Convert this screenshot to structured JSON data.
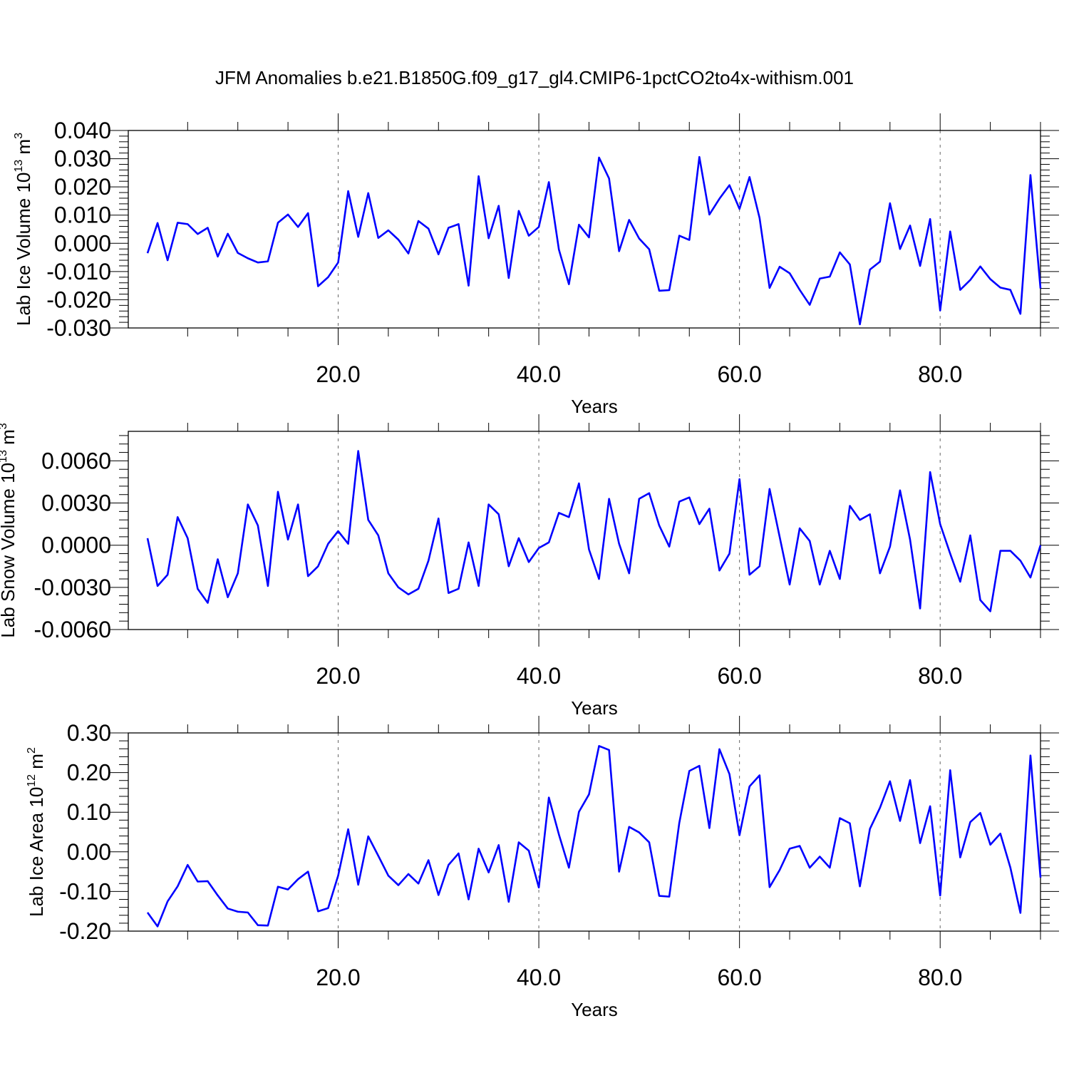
{
  "title": "JFM Anomalies b.e21.B1850G.f09_g17_gl4.CMIP6-1pctCO2to4x-withism.001",
  "line_color": "#0000ff",
  "chart_data": [
    {
      "type": "line",
      "xlabel": "Years",
      "ylabel": "Lab Ice Volume 10",
      "ylabel_exp": "13",
      "ylabel_unit": " m",
      "ylabel_unit_exp": "3",
      "xlim": [
        1,
        90
      ],
      "ylim": [
        -0.03,
        0.04
      ],
      "xticks": [
        20,
        40,
        60,
        80
      ],
      "xtick_labels": [
        "20.0",
        "40.0",
        "60.0",
        "80.0"
      ],
      "yticks": [
        -0.03,
        -0.02,
        -0.01,
        0.0,
        0.01,
        0.02,
        0.03,
        0.04
      ],
      "ytick_labels": [
        "-0.030",
        "-0.020",
        "-0.010",
        "0.000",
        "0.010",
        "0.020",
        "0.030",
        "0.040"
      ],
      "grid": "vertical dashed at major x ticks",
      "x_start": 1,
      "values": [
        -0.0035,
        0.0072,
        -0.006,
        0.0073,
        0.0068,
        0.0033,
        0.0055,
        -0.0047,
        0.0034,
        -0.0034,
        -0.0053,
        -0.0068,
        -0.0064,
        0.0073,
        0.0102,
        0.0058,
        0.0107,
        -0.0152,
        -0.012,
        -0.0068,
        0.0185,
        0.0023,
        0.0178,
        0.0019,
        0.0046,
        0.0013,
        -0.0036,
        0.0079,
        0.0052,
        -0.0039,
        0.0055,
        0.0068,
        -0.015,
        0.0238,
        0.0018,
        0.0133,
        -0.0123,
        0.0115,
        0.0027,
        0.0058,
        0.0217,
        -0.0022,
        -0.0145,
        0.0066,
        0.0021,
        0.0304,
        0.023,
        -0.0028,
        0.0083,
        0.0017,
        -0.0021,
        -0.0168,
        -0.0166,
        0.0027,
        0.0012,
        0.0306,
        0.0102,
        0.0158,
        0.0206,
        0.0122,
        0.0235,
        0.009,
        -0.0158,
        -0.0083,
        -0.0106,
        -0.0165,
        -0.0218,
        -0.0125,
        -0.0118,
        -0.0032,
        -0.0075,
        -0.0287,
        -0.0093,
        -0.0065,
        0.0142,
        -0.002,
        0.0063,
        -0.008,
        0.0086,
        -0.0238,
        0.0042,
        -0.0165,
        -0.013,
        -0.0082,
        -0.0127,
        -0.0157,
        -0.0165,
        -0.025,
        0.0242,
        -0.016
      ]
    },
    {
      "type": "line",
      "xlabel": "Years",
      "ylabel": "Lab Snow Volume 10",
      "ylabel_exp": "13",
      "ylabel_unit": " m",
      "ylabel_unit_exp": "3",
      "xlim": [
        1,
        90
      ],
      "ylim": [
        -0.006,
        0.0081
      ],
      "xticks": [
        20,
        40,
        60,
        80
      ],
      "xtick_labels": [
        "20.0",
        "40.0",
        "60.0",
        "80.0"
      ],
      "yticks": [
        -0.006,
        -0.003,
        0.0,
        0.003,
        0.006
      ],
      "ytick_labels": [
        "-0.0060",
        "-0.0030",
        "0.0000",
        "0.0030",
        "0.0060"
      ],
      "grid": "vertical dashed at major x ticks",
      "x_start": 1,
      "values": [
        0.0005,
        -0.0029,
        -0.0021,
        0.002,
        0.0005,
        -0.0031,
        -0.0041,
        -0.001,
        -0.0037,
        -0.002,
        0.0029,
        0.0014,
        -0.0029,
        0.0038,
        0.0004,
        0.0029,
        -0.0022,
        -0.0015,
        0.0001,
        0.001,
        0.0001,
        0.0067,
        0.0018,
        0.0007,
        -0.002,
        -0.003,
        -0.0035,
        -0.0031,
        -0.0011,
        0.0019,
        -0.0034,
        -0.0031,
        0.0002,
        -0.0029,
        0.0029,
        0.0022,
        -0.0015,
        0.0005,
        -0.0012,
        -0.0002,
        0.0002,
        0.0023,
        0.002,
        0.0044,
        -0.0003,
        -0.0024,
        0.0033,
        0.0001,
        -0.002,
        0.0033,
        0.0037,
        0.0014,
        -0.0001,
        0.0031,
        0.0034,
        0.0015,
        0.0026,
        -0.0018,
        -0.0006,
        0.0047,
        -0.0021,
        -0.0015,
        0.004,
        0.0006,
        -0.0028,
        0.0012,
        0.0003,
        -0.0028,
        -0.0004,
        -0.0024,
        0.0028,
        0.0018,
        0.0022,
        -0.002,
        -0.0001,
        0.0039,
        0.0004,
        -0.0045,
        0.0052,
        0.0015,
        -0.0006,
        -0.0026,
        0.0007,
        -0.0039,
        -0.0047,
        -0.0004,
        -0.0004,
        -0.0011,
        -0.0023,
        0.0
      ]
    },
    {
      "type": "line",
      "xlabel": "Years",
      "ylabel": "Lab Ice Area 10",
      "ylabel_exp": "12",
      "ylabel_unit": " m",
      "ylabel_unit_exp": "2",
      "xlim": [
        1,
        90
      ],
      "ylim": [
        -0.2,
        0.3
      ],
      "xticks": [
        20,
        40,
        60,
        80
      ],
      "xtick_labels": [
        "20.0",
        "40.0",
        "60.0",
        "80.0"
      ],
      "yticks": [
        -0.2,
        -0.1,
        0.0,
        0.1,
        0.2,
        0.3
      ],
      "ytick_labels": [
        "-0.20",
        "-0.10",
        "0.00",
        "0.10",
        "0.20",
        "0.30"
      ],
      "grid": "vertical dashed at major x ticks",
      "x_start": 1,
      "values": [
        -0.153,
        -0.188,
        -0.125,
        -0.087,
        -0.033,
        -0.075,
        -0.074,
        -0.11,
        -0.143,
        -0.151,
        -0.153,
        -0.185,
        -0.186,
        -0.088,
        -0.095,
        -0.069,
        -0.05,
        -0.15,
        -0.142,
        -0.06,
        0.057,
        -0.083,
        0.039,
        -0.01,
        -0.06,
        -0.084,
        -0.056,
        -0.08,
        -0.021,
        -0.109,
        -0.033,
        -0.004,
        -0.12,
        0.008,
        -0.052,
        0.017,
        -0.126,
        0.024,
        0.003,
        -0.09,
        0.137,
        0.044,
        -0.04,
        0.101,
        0.145,
        0.267,
        0.257,
        -0.05,
        0.063,
        0.049,
        0.024,
        -0.111,
        -0.113,
        0.073,
        0.204,
        0.217,
        0.06,
        0.259,
        0.196,
        0.042,
        0.165,
        0.193,
        -0.089,
        -0.046,
        0.008,
        0.015,
        -0.04,
        -0.012,
        -0.04,
        0.085,
        0.072,
        -0.087,
        0.058,
        0.111,
        0.178,
        0.078,
        0.181,
        0.022,
        0.115,
        -0.11,
        0.206,
        -0.014,
        0.075,
        0.098,
        0.018,
        0.046,
        -0.04,
        -0.154,
        0.243,
        -0.065
      ]
    }
  ]
}
